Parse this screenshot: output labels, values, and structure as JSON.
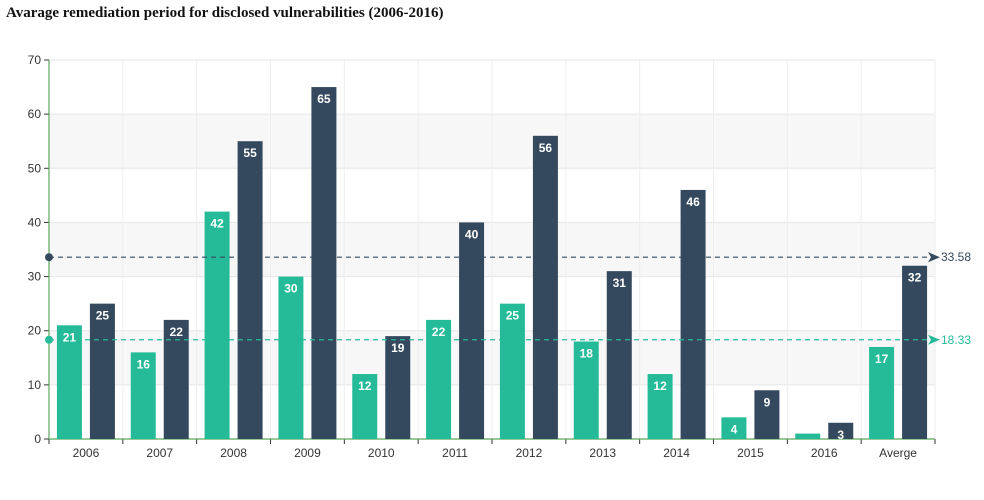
{
  "chart_data": {
    "type": "bar",
    "title": "Avarage remediation period for disclosed vulnerabilities (2006-2016)",
    "xlabel": "",
    "ylabel": "",
    "categories": [
      "2006",
      "2007",
      "2008",
      "2009",
      "2010",
      "2011",
      "2012",
      "2013",
      "2014",
      "2015",
      "2016",
      "Averge"
    ],
    "series": [
      {
        "color": "#26bb98",
        "values": [
          21,
          16,
          42,
          30,
          12,
          22,
          25,
          18,
          12,
          4,
          1,
          17
        ]
      },
      {
        "color": "#34495e",
        "values": [
          25,
          22,
          55,
          65,
          19,
          40,
          56,
          31,
          46,
          9,
          3,
          32
        ]
      }
    ],
    "ylim": [
      0,
      70
    ],
    "yticks": [
      0,
      10,
      20,
      30,
      40,
      50,
      60,
      70
    ],
    "grid": true,
    "reference_lines": [
      {
        "value": 33.58,
        "label": "33.58",
        "color": "#34495e"
      },
      {
        "value": 18.33,
        "label": "18.33",
        "color": "#26bb98"
      }
    ]
  }
}
